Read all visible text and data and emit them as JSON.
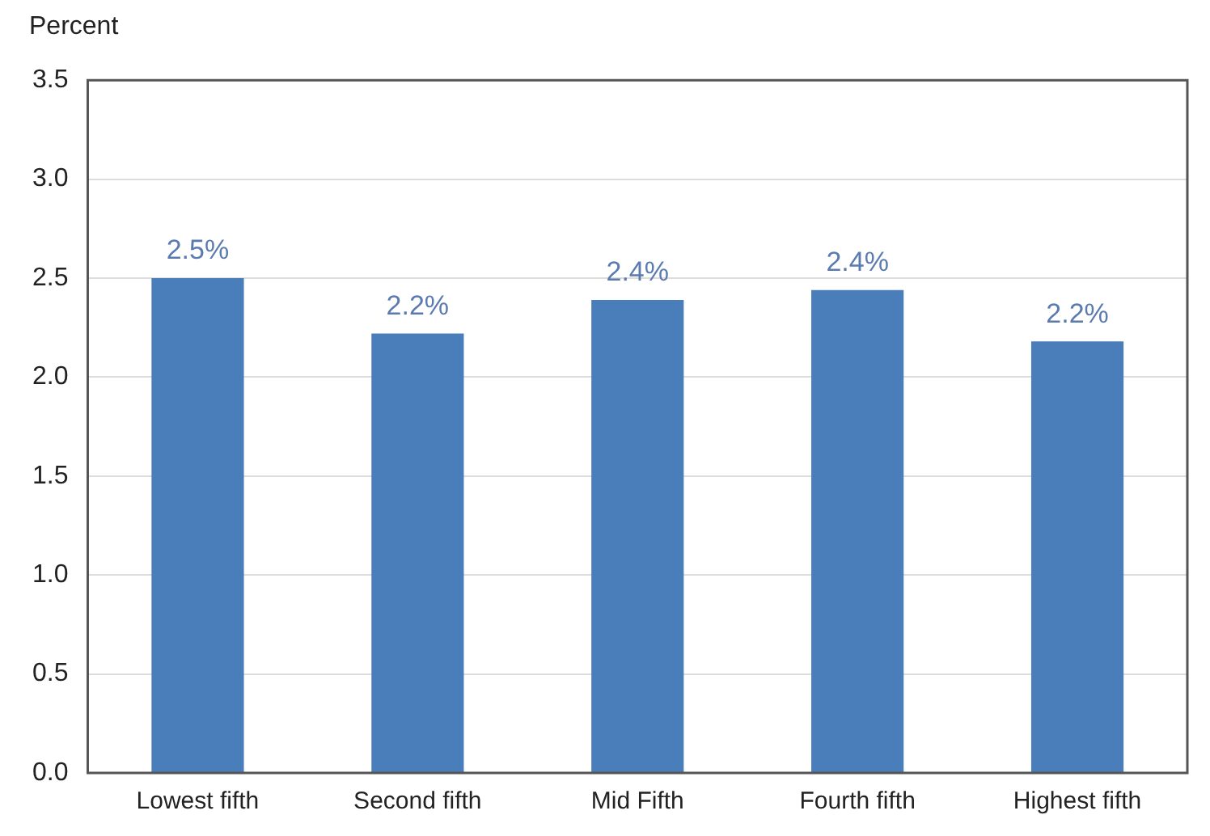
{
  "chart_data": {
    "type": "bar",
    "ylabel": "Percent",
    "categories": [
      "Lowest fifth",
      "Second fifth",
      "Mid Fifth",
      "Fourth fifth",
      "Highest fifth"
    ],
    "values": [
      2.5,
      2.22,
      2.39,
      2.44,
      2.18
    ],
    "value_labels": [
      "2.5%",
      "2.2%",
      "2.4%",
      "2.4%",
      "2.2%"
    ],
    "color": "#4a7ebb",
    "ylim": [
      0,
      3.5
    ],
    "yticks": [
      {
        "value": 0,
        "label": "0.0"
      },
      0.5,
      {
        "value": 1,
        "label": "1.0"
      },
      1.5,
      {
        "value": 2,
        "label": "2.0"
      },
      2.5,
      {
        "value": 3,
        "label": "3.0"
      },
      3.5
    ],
    "grid": "y"
  }
}
